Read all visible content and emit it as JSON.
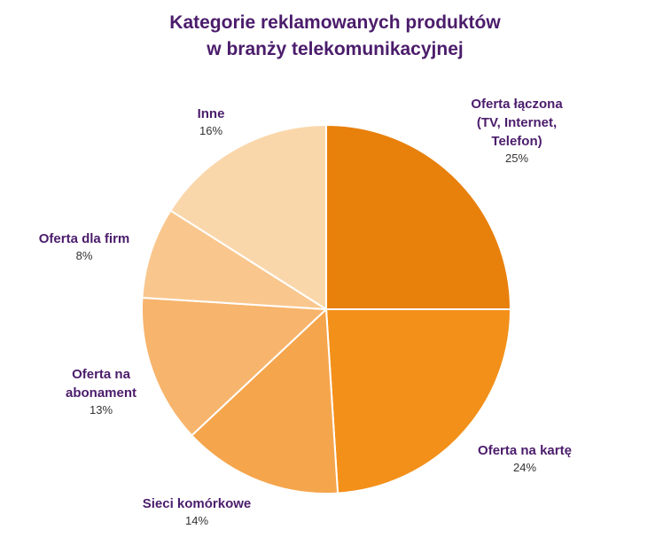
{
  "chart_data": {
    "type": "pie",
    "title_lines": [
      "Kategorie reklamowanych produktów",
      "w branży telekomunikacyjnej"
    ],
    "slices": [
      {
        "label_lines": [
          "Oferta łączona",
          "(TV, Internet,",
          "Telefon)"
        ],
        "value": 25,
        "value_label": "25%",
        "color": "#e8800c"
      },
      {
        "label_lines": [
          "Oferta na kartę"
        ],
        "value": 24,
        "value_label": "24%",
        "color": "#f39019"
      },
      {
        "label_lines": [
          "Sieci komórkowe"
        ],
        "value": 14,
        "value_label": "14%",
        "color": "#f5a54c"
      },
      {
        "label_lines": [
          "Oferta na",
          "abonament"
        ],
        "value": 13,
        "value_label": "13%",
        "color": "#f7b46c"
      },
      {
        "label_lines": [
          "Oferta dla firm"
        ],
        "value": 8,
        "value_label": "8%",
        "color": "#f9c78e"
      },
      {
        "label_lines": [
          "Inne"
        ],
        "value": 16,
        "value_label": "16%",
        "color": "#fad7ab"
      }
    ],
    "start_angle_deg": 0,
    "direction": "clockwise",
    "legend": "none"
  }
}
